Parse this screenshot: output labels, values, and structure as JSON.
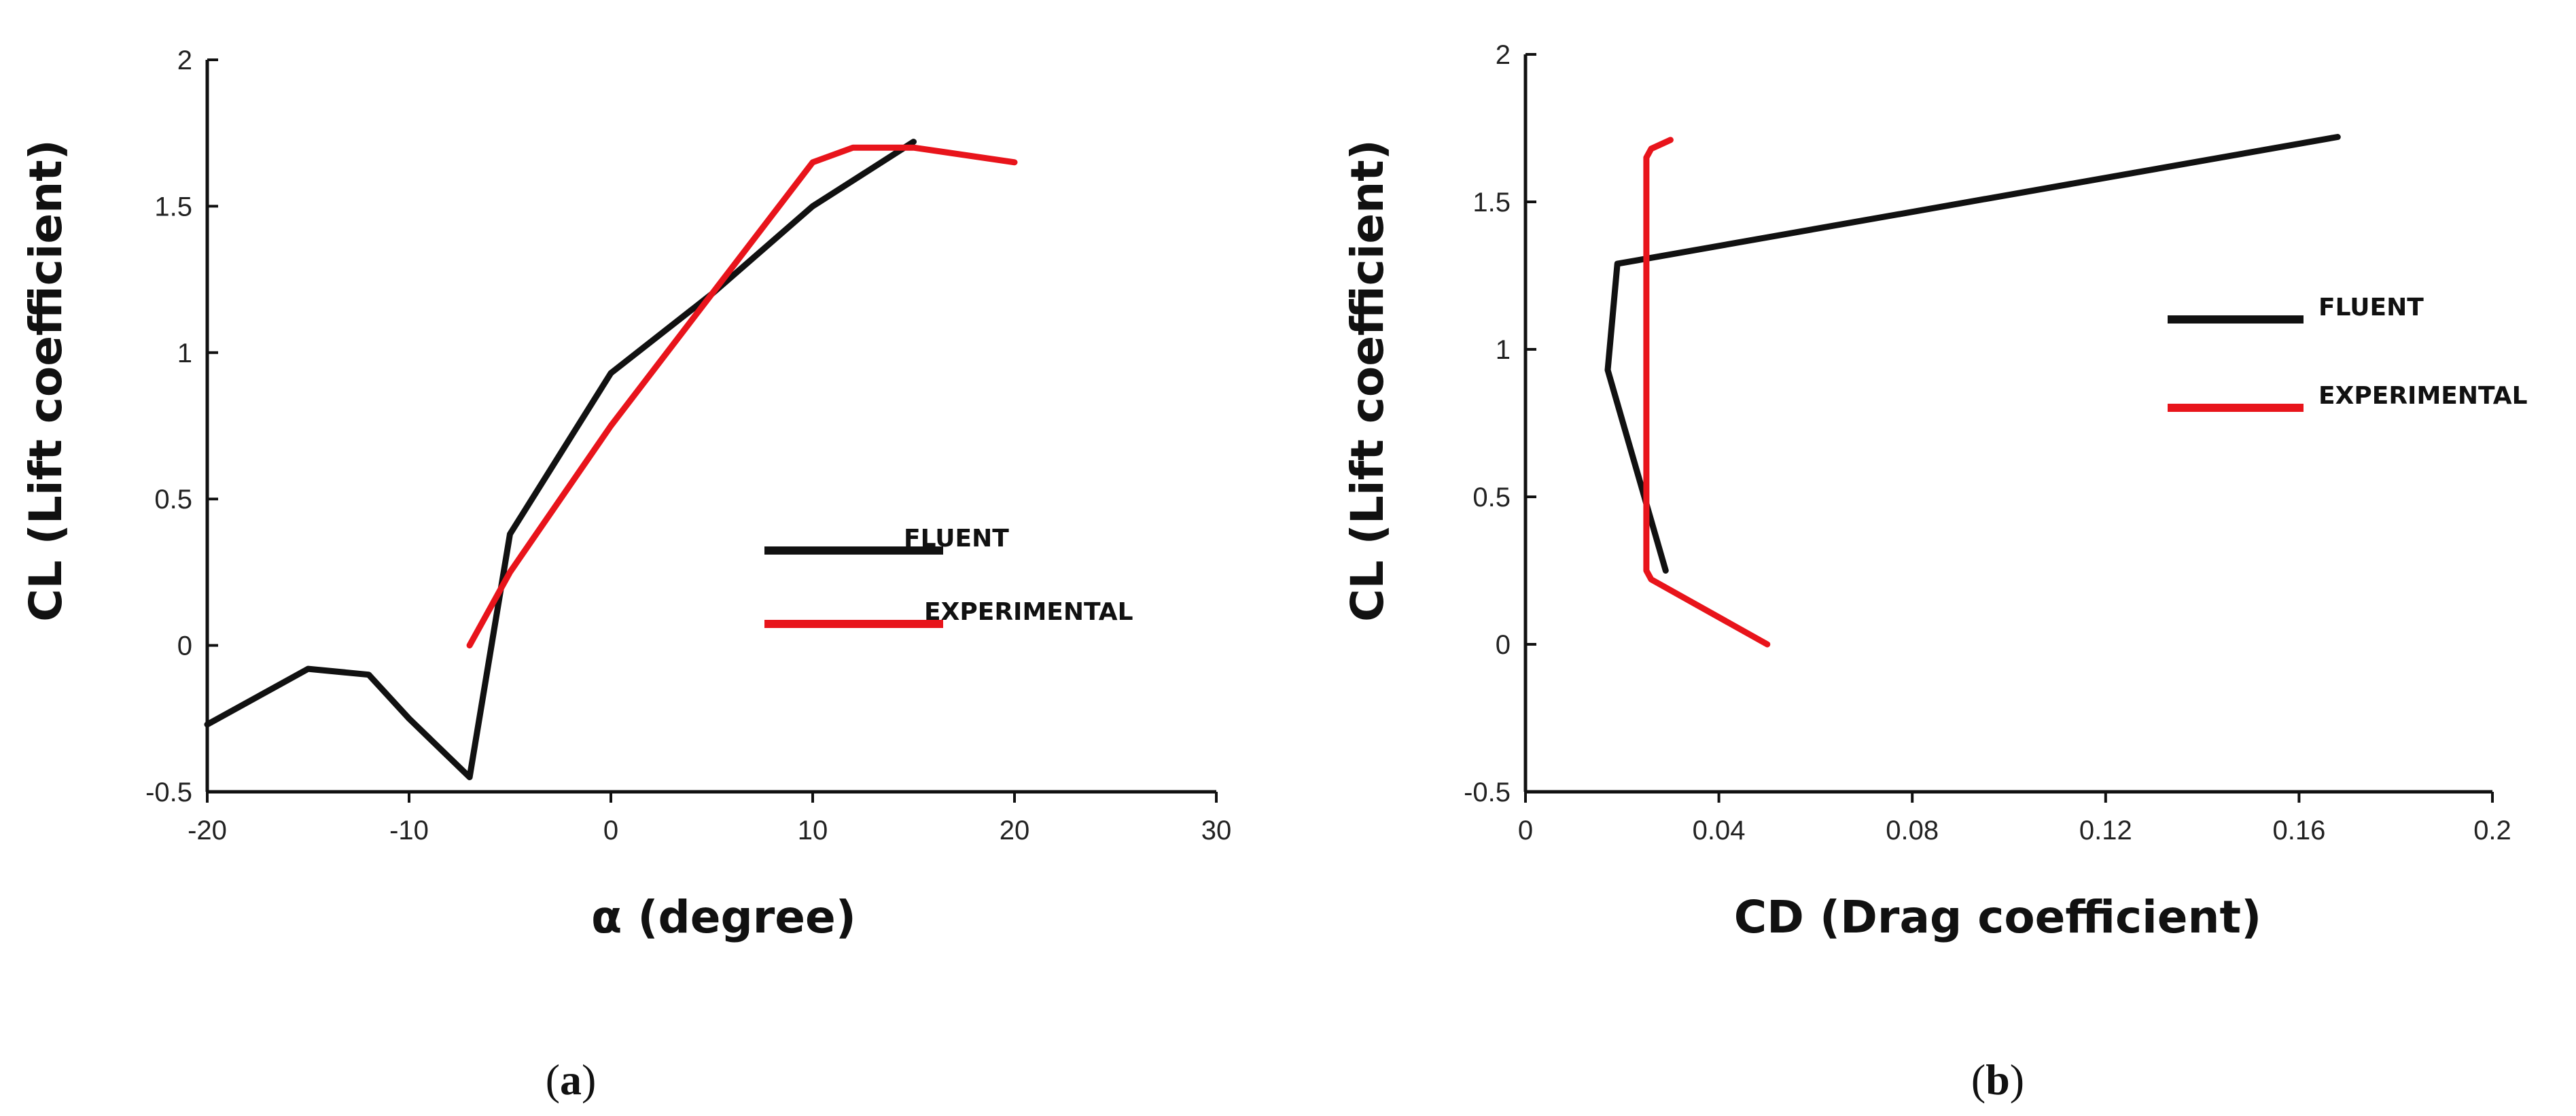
{
  "chart_data": [
    {
      "type": "line",
      "panel_label": "a",
      "xlabel": "α (degree)",
      "ylabel": "CL (Lift coefficient)",
      "xlim": [
        -20,
        30
      ],
      "ylim": [
        -0.5,
        2
      ],
      "xticks": [
        -20,
        -10,
        0,
        10,
        20,
        30
      ],
      "yticks": [
        -0.5,
        0,
        0.5,
        1,
        1.5,
        2
      ],
      "ytick_labels": [
        "-0.5",
        "0",
        "0.5",
        "1",
        "1.5",
        "2"
      ],
      "legend_placement": "center-right",
      "series": [
        {
          "name": "FLUENT",
          "color": "#111111",
          "x": [
            -20,
            -15,
            -12,
            -10,
            -7,
            -5,
            0,
            5,
            10,
            15
          ],
          "y": [
            -0.27,
            -0.08,
            -0.1,
            -0.25,
            -0.45,
            0.38,
            0.93,
            1.2,
            1.5,
            1.72
          ]
        },
        {
          "name": "EXPERIMENTAL",
          "color": "#e8141b",
          "x": [
            -7,
            -5,
            0,
            5,
            10,
            12,
            15,
            20
          ],
          "y": [
            0,
            0.25,
            0.75,
            1.2,
            1.65,
            1.7,
            1.7,
            1.65
          ]
        }
      ]
    },
    {
      "type": "line",
      "panel_label": "b",
      "xlabel": "CD (Drag coefficient)",
      "ylabel": "CL (Lift coefficient)",
      "xlim": [
        0,
        0.2
      ],
      "ylim": [
        -0.5,
        2
      ],
      "xticks": [
        0,
        0.04,
        0.08,
        0.12,
        0.16,
        0.2
      ],
      "yticks": [
        -0.5,
        0,
        0.5,
        1,
        1.5,
        2
      ],
      "ytick_labels": [
        "-0.5",
        "0",
        "0.5",
        "1",
        "1.5",
        "2"
      ],
      "legend_placement": "right",
      "series": [
        {
          "name": "FLUENT",
          "color": "#111111",
          "x": [
            0.168,
            0.019,
            0.017,
            0.029
          ],
          "y": [
            1.72,
            1.29,
            0.93,
            0.25
          ]
        },
        {
          "name": "EXPERIMENTAL",
          "color": "#e8141b",
          "x": [
            0.05,
            0.026,
            0.025,
            0.025,
            0.026,
            0.03
          ],
          "y": [
            0,
            0.22,
            0.25,
            1.65,
            1.68,
            1.71
          ]
        }
      ]
    }
  ]
}
